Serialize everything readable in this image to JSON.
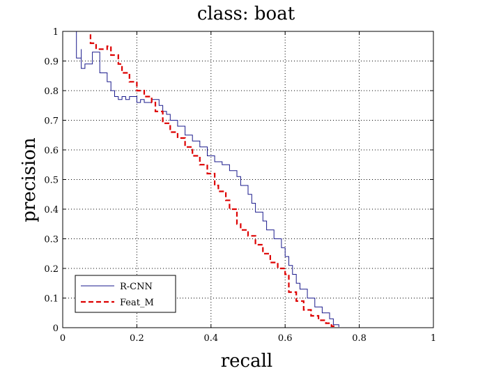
{
  "chart_data": {
    "type": "line",
    "title": "class: boat",
    "xlabel": "recall",
    "ylabel": "precision",
    "xlim": [
      0,
      1
    ],
    "ylim": [
      0,
      1
    ],
    "xticks": [
      "0",
      "0.2",
      "0.4",
      "0.6",
      "0.8",
      "1"
    ],
    "yticks": [
      "0",
      "0.1",
      "0.2",
      "0.3",
      "0.4",
      "0.5",
      "0.6",
      "0.7",
      "0.8",
      "0.9",
      "1"
    ],
    "xtick_values": [
      0,
      0.2,
      0.4,
      0.6,
      0.8,
      1
    ],
    "ytick_values": [
      0,
      0.1,
      0.2,
      0.3,
      0.4,
      0.5,
      0.6,
      0.7,
      0.8,
      0.9,
      1
    ],
    "grid": true,
    "legend_position": "bottom-left",
    "series": [
      {
        "name": "R-CNN",
        "color": "#1a1a8c",
        "style": "solid",
        "points": [
          [
            0.037,
            1.0
          ],
          [
            0.037,
            0.91
          ],
          [
            0.05,
            0.91
          ],
          [
            0.05,
            0.94
          ],
          [
            0.05,
            0.875
          ],
          [
            0.06,
            0.875
          ],
          [
            0.06,
            0.89
          ],
          [
            0.08,
            0.89
          ],
          [
            0.08,
            0.93
          ],
          [
            0.1,
            0.93
          ],
          [
            0.1,
            0.86
          ],
          [
            0.12,
            0.86
          ],
          [
            0.12,
            0.83
          ],
          [
            0.13,
            0.83
          ],
          [
            0.13,
            0.8
          ],
          [
            0.14,
            0.8
          ],
          [
            0.14,
            0.78
          ],
          [
            0.15,
            0.78
          ],
          [
            0.15,
            0.77
          ],
          [
            0.16,
            0.77
          ],
          [
            0.16,
            0.78
          ],
          [
            0.17,
            0.78
          ],
          [
            0.17,
            0.77
          ],
          [
            0.18,
            0.77
          ],
          [
            0.18,
            0.78
          ],
          [
            0.19,
            0.78
          ],
          [
            0.19,
            0.78
          ],
          [
            0.2,
            0.78
          ],
          [
            0.2,
            0.76
          ],
          [
            0.21,
            0.76
          ],
          [
            0.21,
            0.77
          ],
          [
            0.22,
            0.77
          ],
          [
            0.22,
            0.76
          ],
          [
            0.24,
            0.76
          ],
          [
            0.24,
            0.77
          ],
          [
            0.26,
            0.77
          ],
          [
            0.26,
            0.75
          ],
          [
            0.27,
            0.75
          ],
          [
            0.27,
            0.73
          ],
          [
            0.28,
            0.73
          ],
          [
            0.28,
            0.72
          ],
          [
            0.29,
            0.72
          ],
          [
            0.29,
            0.7
          ],
          [
            0.31,
            0.7
          ],
          [
            0.31,
            0.68
          ],
          [
            0.33,
            0.68
          ],
          [
            0.33,
            0.65
          ],
          [
            0.35,
            0.65
          ],
          [
            0.35,
            0.63
          ],
          [
            0.37,
            0.63
          ],
          [
            0.37,
            0.61
          ],
          [
            0.39,
            0.61
          ],
          [
            0.39,
            0.58
          ],
          [
            0.41,
            0.58
          ],
          [
            0.41,
            0.56
          ],
          [
            0.43,
            0.56
          ],
          [
            0.43,
            0.55
          ],
          [
            0.45,
            0.55
          ],
          [
            0.45,
            0.53
          ],
          [
            0.47,
            0.53
          ],
          [
            0.47,
            0.51
          ],
          [
            0.48,
            0.51
          ],
          [
            0.48,
            0.48
          ],
          [
            0.5,
            0.48
          ],
          [
            0.5,
            0.45
          ],
          [
            0.51,
            0.45
          ],
          [
            0.51,
            0.42
          ],
          [
            0.52,
            0.42
          ],
          [
            0.52,
            0.39
          ],
          [
            0.54,
            0.39
          ],
          [
            0.54,
            0.36
          ],
          [
            0.55,
            0.36
          ],
          [
            0.55,
            0.33
          ],
          [
            0.57,
            0.33
          ],
          [
            0.57,
            0.3
          ],
          [
            0.59,
            0.3
          ],
          [
            0.59,
            0.27
          ],
          [
            0.6,
            0.27
          ],
          [
            0.6,
            0.24
          ],
          [
            0.61,
            0.24
          ],
          [
            0.61,
            0.21
          ],
          [
            0.62,
            0.21
          ],
          [
            0.62,
            0.18
          ],
          [
            0.63,
            0.18
          ],
          [
            0.63,
            0.15
          ],
          [
            0.64,
            0.15
          ],
          [
            0.64,
            0.13
          ],
          [
            0.66,
            0.13
          ],
          [
            0.66,
            0.1
          ],
          [
            0.68,
            0.1
          ],
          [
            0.68,
            0.07
          ],
          [
            0.7,
            0.07
          ],
          [
            0.7,
            0.05
          ],
          [
            0.72,
            0.05
          ],
          [
            0.72,
            0.03
          ],
          [
            0.73,
            0.03
          ],
          [
            0.73,
            0.01
          ],
          [
            0.745,
            0.01
          ],
          [
            0.745,
            0.002
          ]
        ]
      },
      {
        "name": "Feat_M",
        "color": "#dd0000",
        "style": "dashed",
        "points": [
          [
            0.075,
            0.99
          ],
          [
            0.075,
            0.96
          ],
          [
            0.09,
            0.96
          ],
          [
            0.09,
            0.94
          ],
          [
            0.12,
            0.94
          ],
          [
            0.12,
            0.95
          ],
          [
            0.13,
            0.95
          ],
          [
            0.13,
            0.92
          ],
          [
            0.15,
            0.92
          ],
          [
            0.15,
            0.89
          ],
          [
            0.16,
            0.89
          ],
          [
            0.16,
            0.86
          ],
          [
            0.18,
            0.86
          ],
          [
            0.18,
            0.83
          ],
          [
            0.2,
            0.83
          ],
          [
            0.2,
            0.8
          ],
          [
            0.22,
            0.8
          ],
          [
            0.22,
            0.78
          ],
          [
            0.24,
            0.78
          ],
          [
            0.24,
            0.76
          ],
          [
            0.25,
            0.76
          ],
          [
            0.25,
            0.73
          ],
          [
            0.27,
            0.73
          ],
          [
            0.27,
            0.69
          ],
          [
            0.29,
            0.69
          ],
          [
            0.29,
            0.66
          ],
          [
            0.31,
            0.66
          ],
          [
            0.31,
            0.64
          ],
          [
            0.33,
            0.64
          ],
          [
            0.33,
            0.61
          ],
          [
            0.35,
            0.61
          ],
          [
            0.35,
            0.58
          ],
          [
            0.37,
            0.58
          ],
          [
            0.37,
            0.55
          ],
          [
            0.39,
            0.55
          ],
          [
            0.39,
            0.52
          ],
          [
            0.41,
            0.52
          ],
          [
            0.41,
            0.48
          ],
          [
            0.42,
            0.48
          ],
          [
            0.42,
            0.46
          ],
          [
            0.44,
            0.46
          ],
          [
            0.44,
            0.43
          ],
          [
            0.45,
            0.43
          ],
          [
            0.45,
            0.4
          ],
          [
            0.47,
            0.4
          ],
          [
            0.47,
            0.35
          ],
          [
            0.48,
            0.35
          ],
          [
            0.48,
            0.33
          ],
          [
            0.5,
            0.33
          ],
          [
            0.5,
            0.31
          ],
          [
            0.52,
            0.31
          ],
          [
            0.52,
            0.28
          ],
          [
            0.54,
            0.28
          ],
          [
            0.54,
            0.25
          ],
          [
            0.56,
            0.25
          ],
          [
            0.56,
            0.22
          ],
          [
            0.58,
            0.22
          ],
          [
            0.58,
            0.2
          ],
          [
            0.6,
            0.2
          ],
          [
            0.6,
            0.18
          ],
          [
            0.61,
            0.18
          ],
          [
            0.61,
            0.12
          ],
          [
            0.63,
            0.12
          ],
          [
            0.63,
            0.09
          ],
          [
            0.65,
            0.09
          ],
          [
            0.65,
            0.06
          ],
          [
            0.67,
            0.06
          ],
          [
            0.67,
            0.04
          ],
          [
            0.69,
            0.04
          ],
          [
            0.69,
            0.025
          ],
          [
            0.71,
            0.025
          ],
          [
            0.71,
            0.015
          ],
          [
            0.725,
            0.015
          ],
          [
            0.725,
            0.005
          ],
          [
            0.735,
            0.005
          ]
        ]
      }
    ]
  }
}
